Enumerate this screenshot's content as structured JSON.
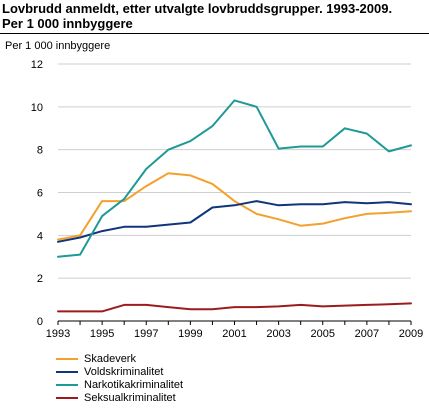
{
  "title_line1": "Lovbrudd anmeldt, etter utvalgte lovbruddsgrupper. 1993-2009.",
  "title_line2": "Per 1 000 innbyggere",
  "chart_data": {
    "type": "line",
    "ylabel": "Per 1 000 innbyggere",
    "xlabel": "",
    "x": [
      1993,
      1994,
      1995,
      1996,
      1997,
      1998,
      1999,
      2000,
      2001,
      2002,
      2003,
      2004,
      2005,
      2006,
      2007,
      2008,
      2009
    ],
    "xticks": [
      "1993",
      "1995",
      "1997",
      "1999",
      "2001",
      "2003",
      "2005",
      "2007",
      "2009"
    ],
    "ylim": [
      0,
      12
    ],
    "yticks": [
      "0",
      "2",
      "4",
      "6",
      "8",
      "10",
      "12"
    ],
    "grid": "horizontal",
    "legend_position": "bottom-left",
    "series": [
      {
        "name": "Skadeverk",
        "color": "#f4a02d",
        "values": [
          3.8,
          4.0,
          5.6,
          5.6,
          6.3,
          6.9,
          6.8,
          6.4,
          5.6,
          5.0,
          4.75,
          4.45,
          4.55,
          4.8,
          5.0,
          5.05,
          5.12
        ]
      },
      {
        "name": "Voldskriminalitet",
        "color": "#10357a",
        "values": [
          3.7,
          3.9,
          4.2,
          4.4,
          4.4,
          4.5,
          4.6,
          5.3,
          5.4,
          5.6,
          5.4,
          5.45,
          5.45,
          5.55,
          5.5,
          5.55,
          5.45
        ]
      },
      {
        "name": "Narkotikakriminalitet",
        "color": "#1e9a96",
        "values": [
          3.0,
          3.1,
          4.9,
          5.7,
          7.1,
          8.0,
          8.4,
          9.1,
          10.3,
          10.0,
          8.05,
          8.15,
          8.15,
          9.0,
          8.75,
          7.92,
          8.2
        ]
      },
      {
        "name": "Seksualkriminalitet",
        "color": "#9b1c1f",
        "values": [
          0.45,
          0.45,
          0.45,
          0.75,
          0.75,
          0.65,
          0.55,
          0.55,
          0.65,
          0.65,
          0.68,
          0.75,
          0.68,
          0.72,
          0.75,
          0.78,
          0.82
        ]
      }
    ]
  }
}
